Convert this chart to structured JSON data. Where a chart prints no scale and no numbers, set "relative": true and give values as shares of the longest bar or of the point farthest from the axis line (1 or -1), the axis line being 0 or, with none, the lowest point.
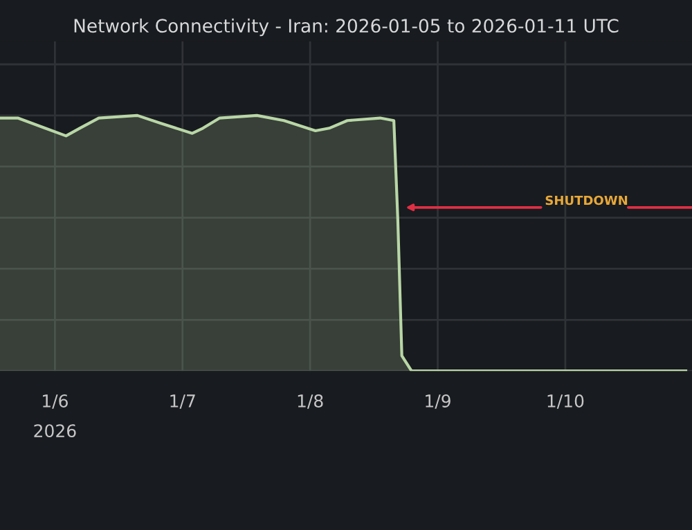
{
  "chart_data": {
    "type": "area",
    "title": "Network Connectivity - Iran: 2026-01-05 to 2026-01-11 UTC",
    "relative": true,
    "x": [
      "2026-01-05T13:40",
      "2026-01-05T17:00",
      "2026-01-05T22:10",
      "2026-01-06T02:05",
      "2026-01-06T04:40",
      "2026-01-06T08:15",
      "2026-01-06T15:30",
      "2026-01-06T19:50",
      "2026-01-07T01:50",
      "2026-01-07T03:50",
      "2026-01-07T07:00",
      "2026-01-07T14:00",
      "2026-01-07T19:05",
      "2026-01-08T01:00",
      "2026-01-08T03:35",
      "2026-01-08T07:00",
      "2026-01-08T13:10",
      "2026-01-08T15:45",
      "2026-01-08T16:30",
      "2026-01-08T17:15",
      "2026-01-08T19:05",
      "2026-01-10T22:40"
    ],
    "series": [
      {
        "color": "#b9d6a6",
        "values": [
          0.99,
          0.99,
          0.95,
          0.92,
          0.95,
          0.99,
          1.0,
          0.97,
          0.93,
          0.95,
          0.99,
          1.0,
          0.98,
          0.94,
          0.95,
          0.98,
          0.99,
          0.98,
          0.59,
          0.06,
          0.0,
          0.0
        ]
      }
    ],
    "xlim": [
      "2026-01-05T13:40",
      "2026-01-10T23:50"
    ],
    "xticks": [
      {
        "value": "2026-01-06",
        "label": "1/6\n2026"
      },
      {
        "value": "2026-01-07",
        "label": "1/7"
      },
      {
        "value": "2026-01-08",
        "label": "1/8"
      },
      {
        "value": "2026-01-09",
        "label": "1/9"
      },
      {
        "value": "2026-01-10",
        "label": "1/10"
      }
    ],
    "annotations": [
      {
        "text": "SHUTDOWN",
        "x": "2026-01-08T17:15",
        "y": 0.64
      }
    ],
    "grid": true
  }
}
